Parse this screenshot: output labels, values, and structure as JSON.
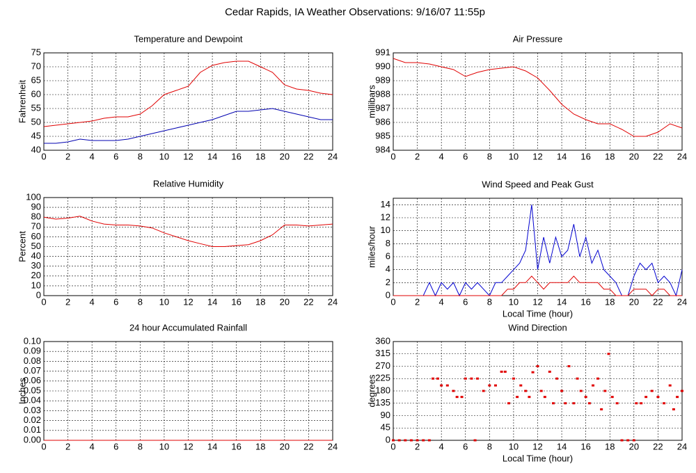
{
  "title": "Cedar Rapids, IA Weather Observations: 9/16/07 11:55p",
  "chart_data": [
    {
      "type": "line",
      "title": "Temperature and Dewpoint",
      "ylabel": "Fahrenheit",
      "x": [
        0,
        1,
        2,
        3,
        4,
        5,
        6,
        7,
        8,
        9,
        10,
        11,
        12,
        13,
        14,
        15,
        16,
        17,
        18,
        19,
        20,
        21,
        22,
        23,
        24
      ],
      "series": [
        {
          "color": "#e00000",
          "values": [
            48.5,
            49,
            49.5,
            50,
            50.5,
            51.5,
            52,
            52,
            53,
            56,
            60,
            61.5,
            63,
            68,
            70.5,
            71.5,
            72,
            72,
            70,
            68,
            63.5,
            62,
            61.5,
            60.5,
            60
          ]
        },
        {
          "color": "#0000b0",
          "values": [
            42.5,
            42.5,
            43,
            44,
            43.5,
            43.5,
            43.5,
            44,
            45,
            46,
            47,
            48,
            49,
            50,
            51,
            52.5,
            54,
            54,
            54.5,
            55,
            54,
            53,
            52,
            51,
            51
          ]
        }
      ],
      "xlim": [
        0,
        24
      ],
      "xticks": [
        0,
        2,
        4,
        6,
        8,
        10,
        12,
        14,
        16,
        18,
        20,
        22,
        24
      ],
      "ylim": [
        40,
        75
      ],
      "yticks": [
        40,
        45,
        50,
        55,
        60,
        65,
        70,
        75
      ],
      "grid": true
    },
    {
      "type": "line",
      "title": "Air Pressure",
      "ylabel": "millibars",
      "x": [
        0,
        1,
        2,
        3,
        4,
        5,
        6,
        7,
        8,
        9,
        10,
        11,
        12,
        13,
        14,
        15,
        16,
        17,
        18,
        19,
        20,
        21,
        22,
        23,
        24
      ],
      "series": [
        {
          "color": "#e00000",
          "values": [
            990.6,
            990.3,
            990.3,
            990.2,
            990.0,
            989.8,
            989.3,
            989.6,
            989.8,
            989.9,
            990.0,
            989.7,
            989.2,
            988.3,
            987.3,
            986.6,
            986.2,
            985.9,
            985.9,
            985.5,
            985.0,
            985.0,
            985.3,
            985.9,
            985.6
          ]
        }
      ],
      "xlim": [
        0,
        24
      ],
      "xticks": [
        0,
        2,
        4,
        6,
        8,
        10,
        12,
        14,
        16,
        18,
        20,
        22,
        24
      ],
      "ylim": [
        984,
        991
      ],
      "yticks": [
        984,
        985,
        986,
        987,
        988,
        989,
        990,
        991
      ],
      "grid": true
    },
    {
      "type": "line",
      "title": "Relative Humidity",
      "ylabel": "Percent",
      "x": [
        0,
        1,
        2,
        3,
        4,
        5,
        6,
        7,
        8,
        9,
        10,
        11,
        12,
        13,
        14,
        15,
        16,
        17,
        18,
        19,
        20,
        21,
        22,
        23,
        24
      ],
      "series": [
        {
          "color": "#e00000",
          "values": [
            80,
            78,
            79,
            81,
            76,
            73,
            72,
            72,
            71,
            69,
            64,
            60,
            56,
            53,
            50,
            50,
            51,
            52,
            56,
            62,
            72,
            72,
            71,
            72,
            73
          ]
        }
      ],
      "xlim": [
        0,
        24
      ],
      "xticks": [
        0,
        2,
        4,
        6,
        8,
        10,
        12,
        14,
        16,
        18,
        20,
        22,
        24
      ],
      "ylim": [
        0,
        100
      ],
      "yticks": [
        0,
        10,
        20,
        30,
        40,
        50,
        60,
        70,
        80,
        90,
        100
      ],
      "grid": true
    },
    {
      "type": "line",
      "title": "Wind Speed and Peak Gust",
      "ylabel": "miles/hour",
      "xlabel": "Local Time (hour)",
      "x": [
        0,
        0.5,
        1,
        1.5,
        2,
        2.5,
        3,
        3.5,
        4,
        4.5,
        5,
        5.5,
        6,
        6.5,
        7,
        7.5,
        8,
        8.5,
        9,
        9.5,
        10,
        10.5,
        11,
        11.5,
        12,
        12.5,
        13,
        13.5,
        14,
        14.5,
        15,
        15.5,
        16,
        16.5,
        17,
        17.5,
        18,
        18.5,
        19,
        19.5,
        20,
        20.5,
        21,
        21.5,
        22,
        22.5,
        23,
        23.5,
        24
      ],
      "series": [
        {
          "color": "#0000d0",
          "values": [
            0,
            0,
            0,
            0,
            0,
            0,
            2,
            0,
            2,
            1,
            2,
            0,
            2,
            1,
            2,
            1,
            0,
            2,
            2,
            3,
            4,
            5,
            7,
            14,
            4,
            9,
            5,
            9,
            6,
            7,
            11,
            6,
            9,
            5,
            7,
            4,
            3,
            2,
            0,
            0,
            3,
            5,
            4,
            5,
            2,
            3,
            2,
            0,
            4
          ]
        },
        {
          "color": "#e00000",
          "values": [
            0,
            0,
            0,
            0,
            0,
            0,
            0,
            0,
            0,
            0,
            0,
            0,
            0,
            0,
            0,
            0,
            0,
            0,
            0,
            1,
            1,
            2,
            2,
            3,
            2,
            1,
            2,
            2,
            2,
            2,
            3,
            2,
            2,
            2,
            2,
            1,
            1,
            0,
            0,
            0,
            1,
            1,
            1,
            0,
            1,
            1,
            0,
            0,
            0
          ]
        }
      ],
      "xlim": [
        0,
        24
      ],
      "xticks": [
        0,
        2,
        4,
        6,
        8,
        10,
        12,
        14,
        16,
        18,
        20,
        22,
        24
      ],
      "ylim": [
        0,
        15
      ],
      "yticks": [
        0,
        2,
        4,
        6,
        8,
        10,
        12,
        14
      ],
      "grid": true
    },
    {
      "type": "line",
      "title": "24 hour Accumulated Rainfall",
      "ylabel": "Inches",
      "x": [
        0,
        24
      ],
      "series": [
        {
          "color": "#e00000",
          "values": [
            0,
            0
          ]
        }
      ],
      "xlim": [
        0,
        24
      ],
      "xticks": [
        0,
        2,
        4,
        6,
        8,
        10,
        12,
        14,
        16,
        18,
        20,
        22,
        24
      ],
      "ylim": [
        0,
        0.1
      ],
      "yticks": [
        {
          "value": 0,
          "label": "0.00"
        },
        {
          "value": 0.01,
          "label": "0.01"
        },
        {
          "value": 0.02,
          "label": "0.02"
        },
        {
          "value": 0.03,
          "label": "0.03"
        },
        {
          "value": 0.04,
          "label": "0.04"
        },
        {
          "value": 0.05,
          "label": "0.05"
        },
        {
          "value": 0.06,
          "label": "0.06"
        },
        {
          "value": 0.07,
          "label": "0.07"
        },
        {
          "value": 0.08,
          "label": "0.08"
        },
        {
          "value": 0.09,
          "label": "0.09"
        },
        {
          "value": 0.1,
          "label": "0.10"
        }
      ],
      "grid": true
    },
    {
      "type": "scatter",
      "title": "Wind Direction",
      "ylabel": "degrees",
      "xlabel": "Local Time (hour)",
      "x": [
        0,
        0.5,
        1,
        1.5,
        2,
        2.5,
        3,
        3.3,
        3.7,
        4,
        4.5,
        5,
        5.3,
        5.7,
        6,
        6.5,
        6.8,
        7,
        7.5,
        8,
        8.5,
        9,
        9.3,
        9.6,
        10,
        10.3,
        10.6,
        11,
        11.3,
        11.6,
        12,
        12.3,
        12.6,
        13,
        13.3,
        13.6,
        14,
        14.3,
        14.6,
        15,
        15.3,
        15.6,
        16,
        16.3,
        16.6,
        17,
        17.3,
        17.6,
        17.9,
        18.2,
        18.6,
        19,
        19.5,
        20,
        20.2,
        20.6,
        21,
        21.5,
        22,
        22.5,
        23,
        23.3,
        23.6,
        24
      ],
      "series": [
        {
          "color": "#e00000",
          "values": [
            0,
            0,
            0,
            0,
            0,
            0,
            0,
            225,
            225,
            200,
            200,
            180,
            158,
            158,
            225,
            225,
            0,
            225,
            180,
            200,
            200,
            250,
            250,
            135,
            225,
            158,
            200,
            180,
            158,
            248,
            270,
            180,
            158,
            250,
            135,
            225,
            180,
            135,
            270,
            135,
            225,
            180,
            158,
            135,
            200,
            225,
            113,
            180,
            315,
            158,
            135,
            0,
            0,
            0,
            135,
            135,
            158,
            180,
            158,
            135,
            200,
            113,
            158,
            180
          ]
        }
      ],
      "xlim": [
        0,
        24
      ],
      "xticks": [
        0,
        2,
        4,
        6,
        8,
        10,
        12,
        14,
        16,
        18,
        20,
        22,
        24
      ],
      "ylim": [
        0,
        360
      ],
      "yticks": [
        0,
        45,
        90,
        135,
        180,
        225,
        270,
        315,
        360
      ],
      "grid": true
    }
  ]
}
